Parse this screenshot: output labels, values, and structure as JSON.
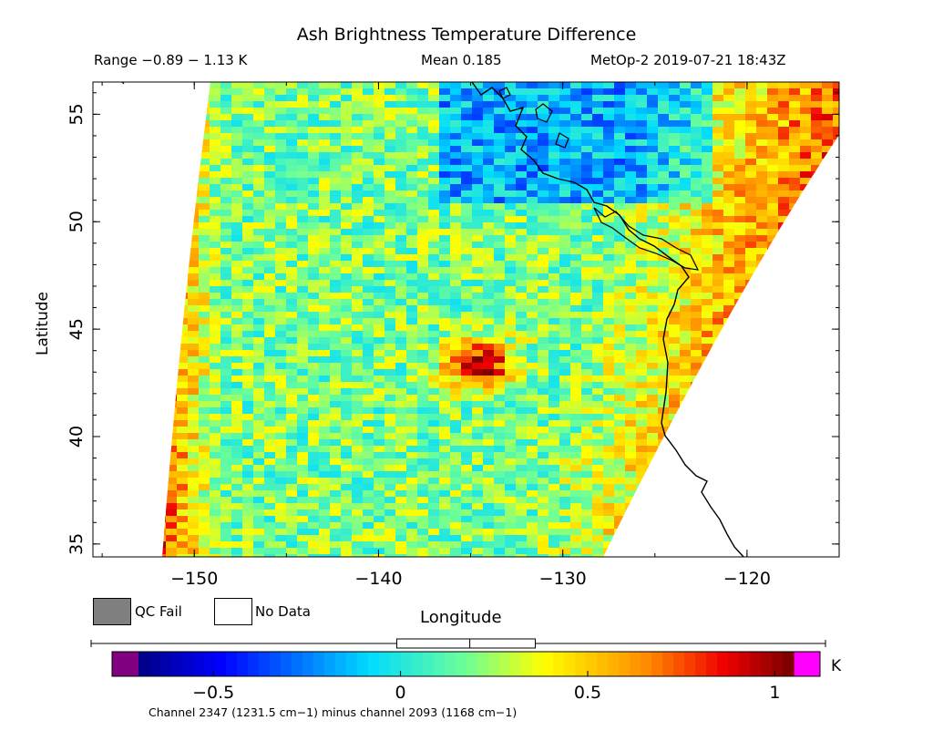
{
  "title": "Ash Brightness Temperature Difference",
  "range_text": "Range −0.89 − 1.13 K",
  "mean_text": "Mean 0.185",
  "satellite_text": "MetOp-2 2019-07-21 18:43Z",
  "ylabel": "Latitude",
  "xlabel": "Longitude",
  "legend": {
    "qc_fail": "QC Fail",
    "no_data": "No Data"
  },
  "colorbar": {
    "units": "K",
    "min": -0.7,
    "max": 1.05,
    "ticks": [
      {
        "value": -0.5,
        "label": "−0.5"
      },
      {
        "value": 0,
        "label": "0"
      },
      {
        "value": 0.5,
        "label": "0.5"
      },
      {
        "value": 1,
        "label": "1"
      }
    ],
    "under_color": "#800080",
    "over_color": "#ff00ff",
    "range_marker": {
      "min": -0.01,
      "mean": 0.185,
      "max": 0.36
    }
  },
  "channel_text": "Channel 2347 (1231.5 cm−1) minus channel 2093 (1168 cm−1)",
  "map": {
    "lon_range": [
      -155.5,
      -115
    ],
    "lat_range": [
      34.4,
      56.5
    ],
    "x_ticks": [
      {
        "value": -150,
        "label": "−150"
      },
      {
        "value": -140,
        "label": "−140"
      },
      {
        "value": -130,
        "label": "−130"
      },
      {
        "value": -120,
        "label": "−120"
      }
    ],
    "y_ticks": [
      {
        "value": 35,
        "label": "35"
      },
      {
        "value": 40,
        "label": "40"
      },
      {
        "value": 45,
        "label": "45"
      },
      {
        "value": 50,
        "label": "50"
      },
      {
        "value": 55,
        "label": "55"
      }
    ],
    "ash_hotspot": {
      "lon": -134.8,
      "lat": 43.5
    }
  }
}
